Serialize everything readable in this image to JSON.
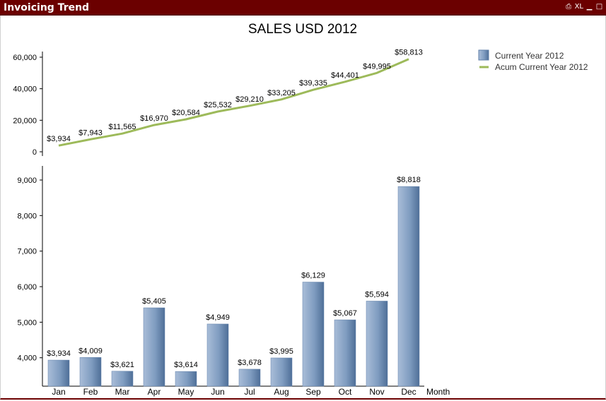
{
  "window": {
    "title": "Invoicing Trend",
    "icons": [
      {
        "name": "print",
        "glyph": "⎙"
      },
      {
        "name": "excel",
        "glyph": "XL"
      },
      {
        "name": "minimize",
        "glyph": "▁"
      },
      {
        "name": "maximize",
        "glyph": "□"
      }
    ]
  },
  "colors": {
    "titlebar": "#6b0000",
    "bar": "#7f9cc0",
    "bar_dark": "#4f6f98",
    "line": "#9dba5a",
    "axis": "#000000"
  },
  "chart_data": {
    "type": "bar",
    "title": "SALES USD 2012",
    "xlabel": "Month",
    "categories": [
      "Jan",
      "Feb",
      "Mar",
      "Apr",
      "May",
      "Jun",
      "Jul",
      "Aug",
      "Sep",
      "Oct",
      "Nov",
      "Dec"
    ],
    "series": [
      {
        "name": "Current Year 2012",
        "type": "bar",
        "values": [
          3934,
          4009,
          3621,
          5405,
          3614,
          4949,
          3678,
          3995,
          6129,
          5067,
          5594,
          8818
        ],
        "labels": [
          "$3,934",
          "$4,009",
          "$3,621",
          "$5,405",
          "$3,614",
          "$4,949",
          "$3,678",
          "$3,995",
          "$6,129",
          "$5,067",
          "$5,594",
          "$8,818"
        ]
      },
      {
        "name": "Acum Current Year 2012",
        "type": "line",
        "values": [
          3934,
          7943,
          11565,
          16970,
          20584,
          25532,
          29210,
          33205,
          39335,
          44401,
          49995,
          58813
        ],
        "labels": [
          "$3,934",
          "$7,943",
          "$11,565",
          "$16,970",
          "$20,584",
          "$25,532",
          "$29,210",
          "$33,205",
          "$39,335",
          "$44,401",
          "$49,995",
          "$58,813"
        ]
      }
    ],
    "line_axis": {
      "ticks": [
        "60,000",
        "40,000",
        "20,000",
        "0"
      ],
      "tick_values": [
        60000,
        40000,
        20000,
        0
      ],
      "ylim": [
        0,
        60000
      ]
    },
    "bar_axis": {
      "ticks": [
        "9,000",
        "8,000",
        "7,000",
        "6,000",
        "5,000",
        "4,000"
      ],
      "tick_values": [
        9000,
        8000,
        7000,
        6000,
        5000,
        4000
      ],
      "ylim": [
        3200,
        9000
      ]
    },
    "legend": "top-right",
    "grid": false
  }
}
